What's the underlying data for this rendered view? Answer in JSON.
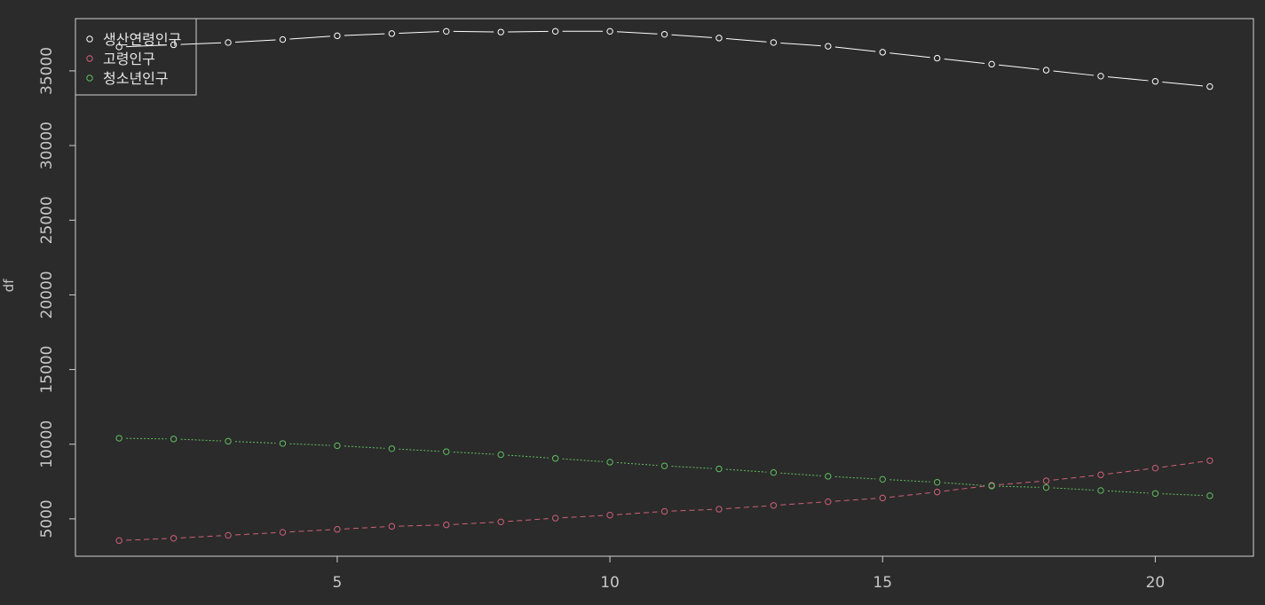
{
  "chart_data": {
    "type": "line",
    "title": "",
    "xlabel": "",
    "ylabel": "df",
    "xlim": [
      0.2,
      21.8
    ],
    "ylim": [
      2500,
      38500
    ],
    "x_ticks": [
      5,
      10,
      15,
      20
    ],
    "y_ticks": [
      5000,
      10000,
      15000,
      20000,
      25000,
      30000,
      35000
    ],
    "grid": false,
    "legend_position": "top-left",
    "x": [
      1,
      2,
      3,
      4,
      5,
      6,
      7,
      8,
      9,
      10,
      11,
      12,
      13,
      14,
      15,
      16,
      17,
      18,
      19,
      20,
      21
    ],
    "series": [
      {
        "name": "생산연령인구",
        "color": "#ffffff",
        "line_style": "solid",
        "values": [
          36600,
          36750,
          36900,
          37100,
          37350,
          37500,
          37650,
          37600,
          37650,
          37650,
          37450,
          37200,
          36900,
          36650,
          36250,
          35850,
          35450,
          35050,
          34650,
          34300,
          33950
        ]
      },
      {
        "name": "고령인구",
        "color": "#d0607a",
        "line_style": "dashed",
        "values": [
          3550,
          3700,
          3900,
          4100,
          4300,
          4500,
          4600,
          4800,
          5050,
          5250,
          5500,
          5650,
          5900,
          6150,
          6400,
          6800,
          7250,
          7550,
          7950,
          8400,
          8900
        ]
      },
      {
        "name": "청소년인구",
        "color": "#60c060",
        "line_style": "dotted",
        "values": [
          10400,
          10350,
          10200,
          10050,
          9900,
          9700,
          9500,
          9300,
          9050,
          8800,
          8550,
          8350,
          8100,
          7850,
          7650,
          7450,
          7200,
          7100,
          6900,
          6700,
          6550
        ]
      }
    ]
  }
}
